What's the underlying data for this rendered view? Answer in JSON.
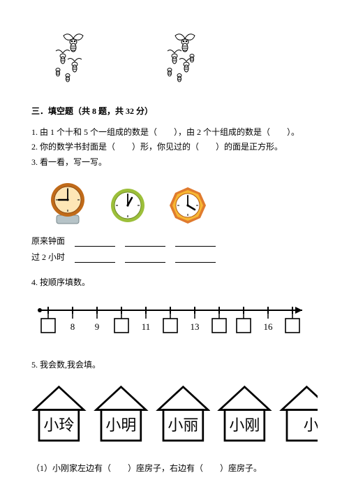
{
  "section": {
    "title": "三．填空题（共 8 题，共 32 分）"
  },
  "q1": "1. 由 1 个十和 5 个一组成的数是（　　），由 2 个十组成的数是（　　）。",
  "q2": "2. 你的数学书封面是（　　）形，你见过的（　　）的面是正方形。",
  "q3": "3. 看一看，写一写。",
  "clockLabels": {
    "before": "原来钟面",
    "after": "过 2 小时"
  },
  "clocks": [
    {
      "face": "#fde6b6",
      "rim": "#c06a19",
      "baseFill": "#b6c3c7",
      "hour": -90,
      "minute": 0
    },
    {
      "face": "#ffffff",
      "rim": "#9cbf3a",
      "baseFill": "none",
      "hour": -30,
      "minute": 0
    },
    {
      "face": "#f7b733",
      "rim": "#e07b2e",
      "baseFill": "none",
      "hour": 60,
      "minute": 0,
      "shape": "octagon"
    }
  ],
  "q4": {
    "title": "4. 按顺序填数。",
    "labels": [
      "",
      "8",
      "9",
      "",
      "11",
      "",
      "13",
      "",
      "",
      "16",
      ""
    ]
  },
  "q5": {
    "title": "5. 我会数,我会填。",
    "houses": [
      "小玲",
      "小明",
      "小丽",
      "小刚",
      "小"
    ]
  },
  "q5sub": "（1）小刚家左边有（　　）座房子，右边有（　　）座房子。",
  "colors": {
    "text": "#000000",
    "bg": "#ffffff"
  }
}
